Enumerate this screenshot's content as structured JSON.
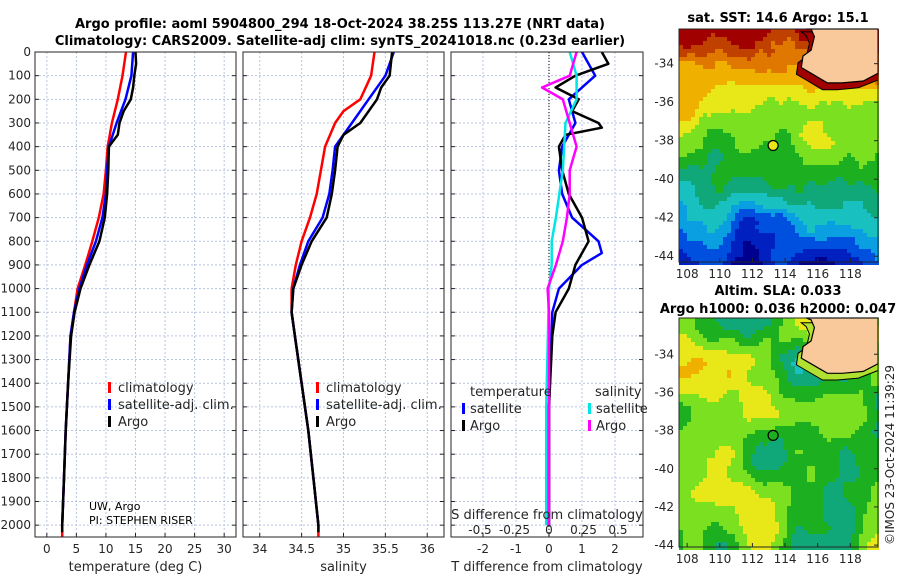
{
  "header": {
    "title_line1": "Argo profile: aoml 5904800_294 18-Oct-2024 38.25S 113.27E (NRT data)",
    "title_line2": "Climatology: CARS2009. Satellite-adj clim: synTS_20241018.nc (0.23d earlier)"
  },
  "credit": {
    "line1": "UW, Argo",
    "line2": "PI: STEPHEN RISER"
  },
  "copyright": "©IMOS 23-Oct-2024 11:39:29",
  "colors": {
    "climatology": "#ff0000",
    "satellite": "#0000ff",
    "argo": "#000000",
    "s_satellite": "#00e5e5",
    "s_argo": "#ff00ff",
    "land": "#f9c89b"
  },
  "chart_data": [
    {
      "type": "line",
      "id": "temperature",
      "xlabel": "temperature (deg C)",
      "ylabel": "",
      "xlim": [
        -2,
        32
      ],
      "ylim": [
        2050,
        0
      ],
      "xticks": [
        0,
        5,
        10,
        15,
        20,
        25,
        30
      ],
      "yticks": [
        0,
        100,
        200,
        300,
        400,
        500,
        600,
        700,
        800,
        900,
        1000,
        1100,
        1200,
        1300,
        1400,
        1500,
        1600,
        1700,
        1800,
        1900,
        2000
      ],
      "legend": [
        "climatology",
        "satellite-adj. clim.",
        "Argo"
      ],
      "series": [
        {
          "name": "climatology",
          "depth": [
            0,
            100,
            200,
            300,
            400,
            500,
            600,
            700,
            800,
            900,
            1000,
            1100,
            1200,
            1400,
            1600,
            1800,
            2000,
            2050
          ],
          "values": [
            13.4,
            12.8,
            12.0,
            11.0,
            10.3,
            10.0,
            9.6,
            8.8,
            7.7,
            6.5,
            5.2,
            4.6,
            4.0,
            3.6,
            3.2,
            2.9,
            2.6,
            2.6
          ]
        },
        {
          "name": "satellite-adj. clim.",
          "depth": [
            0,
            100,
            200,
            300,
            400,
            500,
            600,
            700,
            800,
            900,
            1000,
            1100,
            1200,
            1400,
            1600,
            1800,
            2000
          ],
          "values": [
            14.6,
            14.3,
            13.3,
            11.8,
            10.5,
            10.2,
            10.0,
            9.4,
            8.3,
            6.8,
            5.5,
            4.6,
            4.0,
            3.6,
            3.2,
            2.9,
            2.6
          ]
        },
        {
          "name": "Argo",
          "depth": [
            0,
            50,
            100,
            150,
            200,
            250,
            300,
            350,
            400,
            500,
            600,
            700,
            800,
            900,
            1000,
            1100,
            1200,
            1400,
            1600,
            1800,
            2000,
            2030
          ],
          "values": [
            15.0,
            15.1,
            14.8,
            14.6,
            14.2,
            13.0,
            12.3,
            12.0,
            10.5,
            10.4,
            10.2,
            9.8,
            8.9,
            7.2,
            5.7,
            4.7,
            4.1,
            3.6,
            3.2,
            2.9,
            2.6,
            2.6
          ]
        }
      ]
    },
    {
      "type": "line",
      "id": "salinity",
      "xlabel": "salinity",
      "ylabel": "",
      "xlim": [
        33.8,
        36.2
      ],
      "ylim": [
        2050,
        0
      ],
      "xticks": [
        34,
        34.5,
        35,
        35.5,
        36
      ],
      "legend": [
        "climatology",
        "satellite-adj. clim.",
        "Argo"
      ],
      "series": [
        {
          "name": "climatology",
          "depth": [
            0,
            100,
            200,
            250,
            300,
            400,
            500,
            600,
            700,
            800,
            900,
            1000,
            1100,
            1200,
            1400,
            1600,
            1800,
            2000,
            2050
          ],
          "values": [
            35.37,
            35.33,
            35.2,
            35.0,
            34.9,
            34.78,
            34.73,
            34.68,
            34.6,
            34.5,
            34.43,
            34.38,
            34.38,
            34.42,
            34.5,
            34.58,
            34.64,
            34.7,
            34.7
          ]
        },
        {
          "name": "satellite-adj. clim.",
          "depth": [
            0,
            100,
            200,
            300,
            400,
            500,
            600,
            700,
            800,
            900,
            1000,
            1100,
            1200,
            1400,
            1600,
            1800,
            2000
          ],
          "values": [
            35.6,
            35.5,
            35.3,
            35.1,
            34.9,
            34.87,
            34.83,
            34.75,
            34.58,
            34.48,
            34.4,
            34.38,
            34.42,
            34.5,
            34.58,
            34.64,
            34.7
          ]
        },
        {
          "name": "Argo",
          "depth": [
            0,
            100,
            150,
            200,
            300,
            350,
            400,
            500,
            600,
            700,
            800,
            900,
            1000,
            1100,
            1200,
            1400,
            1600,
            1800,
            2000,
            2030
          ],
          "values": [
            35.58,
            35.55,
            35.45,
            35.4,
            35.2,
            35.0,
            34.93,
            34.9,
            34.86,
            34.8,
            34.62,
            34.5,
            34.4,
            34.38,
            34.42,
            34.5,
            34.58,
            34.64,
            34.7,
            34.7
          ]
        }
      ]
    },
    {
      "type": "line",
      "id": "difference",
      "xlabel": "T difference from climatology",
      "xlabel_s": "S difference from climatology",
      "xlim": [
        -2.97,
        2.85
      ],
      "ylim": [
        2050,
        0
      ],
      "xticks": [
        -2,
        -1,
        0,
        1,
        2
      ],
      "s_xticks": [
        "-0.5",
        "-0.25",
        "0",
        "0.25",
        "0.5"
      ],
      "s_per_t": 0.2391,
      "legend_t_title": "temperature",
      "legend_s_title": "salinity",
      "legend": [
        "satellite",
        "Argo",
        "satellite",
        "Argo"
      ],
      "series": [
        {
          "name": "T satellite",
          "unit": "T",
          "depth": [
            0,
            100,
            200,
            300,
            400,
            500,
            600,
            700,
            800,
            850,
            900,
            1000,
            1100,
            1500,
            2000
          ],
          "values": [
            1.0,
            1.4,
            0.6,
            0.8,
            0.4,
            0.3,
            0.4,
            0.7,
            1.5,
            1.6,
            1.0,
            0.3,
            0.1,
            0,
            0
          ]
        },
        {
          "name": "T Argo",
          "unit": "T",
          "depth": [
            0,
            50,
            100,
            150,
            200,
            250,
            300,
            320,
            350,
            400,
            500,
            600,
            700,
            800,
            900,
            1000,
            1100,
            1200,
            1500,
            2000
          ],
          "values": [
            1.6,
            1.8,
            0.8,
            0.2,
            0.9,
            0.7,
            1.5,
            1.6,
            0.5,
            0.3,
            0.4,
            0.6,
            1.0,
            1.2,
            0.8,
            0.6,
            0.2,
            0.1,
            0,
            0
          ]
        },
        {
          "name": "S satellite",
          "unit": "S",
          "depth": [
            0,
            100,
            200,
            300,
            500,
            700,
            800,
            900,
            1000,
            1500,
            2000
          ],
          "values": [
            0.15,
            0.2,
            0.2,
            0.12,
            0.1,
            0.05,
            0.02,
            0.02,
            0,
            -0.02,
            -0.02
          ]
        },
        {
          "name": "S Argo",
          "unit": "S",
          "depth": [
            0,
            100,
            150,
            200,
            300,
            400,
            500,
            600,
            700,
            800,
            900,
            1000,
            1100,
            2000
          ],
          "values": [
            0.2,
            0.15,
            -0.05,
            0.1,
            0.15,
            0.2,
            0.15,
            0.15,
            0.13,
            0.1,
            0.05,
            -0.01,
            0,
            0
          ]
        }
      ]
    }
  ],
  "maps": {
    "sst": {
      "title": "sat. SST: 14.6 Argo: 15.1",
      "lon_range": [
        107.5,
        119.7
      ],
      "lat_range": [
        -32.2,
        -44.3
      ]
    },
    "sla": {
      "title_line1": "Altim. SLA: 0.033",
      "title_line2": "Argo h1000: 0.036 h2000: 0.047",
      "lon_range": [
        107.5,
        119.7
      ],
      "lat_range": [
        -32.1,
        -44.1
      ]
    },
    "lon_ticks": [
      "108",
      "110",
      "112",
      "114",
      "116",
      "118"
    ],
    "lat_ticks": [
      "-34",
      "-36",
      "-38",
      "-40",
      "-42",
      "-44"
    ],
    "argo_position": {
      "lon": 113.27,
      "lat": -38.25
    }
  }
}
